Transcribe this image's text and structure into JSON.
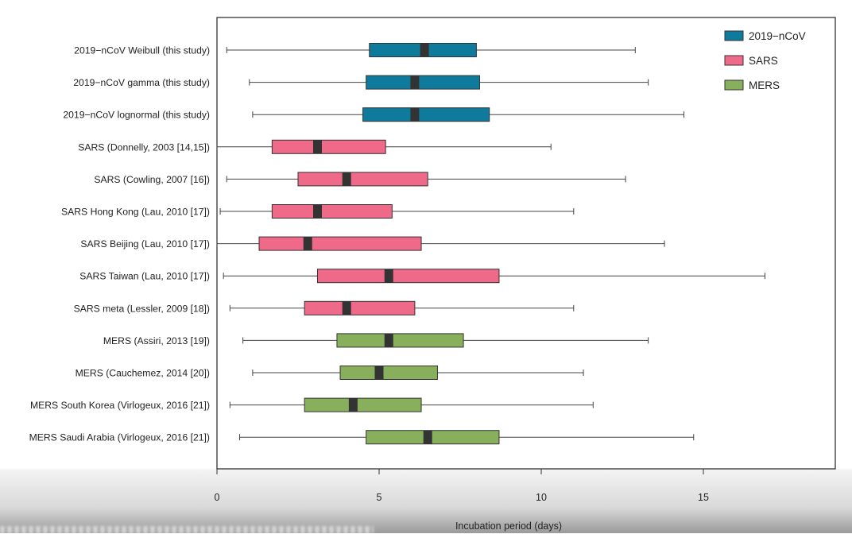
{
  "chart_data": {
    "type": "boxplot",
    "orientation": "horizontal",
    "title": "",
    "xlabel": "Incubation period (days)",
    "ylabel": "",
    "xlim": [
      0,
      19
    ],
    "x_ticks": [
      0,
      5,
      10,
      15
    ],
    "grid": false,
    "legend_position": "top-right",
    "series": [
      {
        "name": "2019−nCoV",
        "color": "#0f7b9c"
      },
      {
        "name": "SARS",
        "color": "#ef6a88"
      },
      {
        "name": "MERS",
        "color": "#88b05c"
      }
    ],
    "rows": [
      {
        "label": "2019−nCoV Weibull (this study)",
        "series": "2019−nCoV",
        "min": 0.3,
        "q1": 4.7,
        "median": 6.4,
        "q3": 8.0,
        "max": 12.9
      },
      {
        "label": "2019−nCoV gamma (this study)",
        "series": "2019−nCoV",
        "min": 1.0,
        "q1": 4.6,
        "median": 6.1,
        "q3": 8.1,
        "max": 13.3
      },
      {
        "label": "2019−nCoV lognormal (this study)",
        "series": "2019−nCoV",
        "min": 1.1,
        "q1": 4.5,
        "median": 6.1,
        "q3": 8.4,
        "max": 14.4
      },
      {
        "label": "SARS (Donnelly, 2003 [14,15])",
        "series": "SARS",
        "min": 0.0,
        "q1": 1.7,
        "median": 3.1,
        "q3": 5.2,
        "max": 10.3
      },
      {
        "label": "SARS (Cowling, 2007 [16])",
        "series": "SARS",
        "min": 0.3,
        "q1": 2.5,
        "median": 4.0,
        "q3": 6.5,
        "max": 12.6
      },
      {
        "label": "SARS Hong Kong (Lau, 2010 [17])",
        "series": "SARS",
        "min": 0.1,
        "q1": 1.7,
        "median": 3.1,
        "q3": 5.4,
        "max": 11.0
      },
      {
        "label": "SARS Beijing (Lau, 2010 [17])",
        "series": "SARS",
        "min": 0.0,
        "q1": 1.3,
        "median": 2.8,
        "q3": 6.3,
        "max": 13.8
      },
      {
        "label": "SARS Taiwan (Lau, 2010 [17])",
        "series": "SARS",
        "min": 0.2,
        "q1": 3.1,
        "median": 5.3,
        "q3": 8.7,
        "max": 16.9
      },
      {
        "label": "SARS meta (Lessler, 2009 [18])",
        "series": "SARS",
        "min": 0.4,
        "q1": 2.7,
        "median": 4.0,
        "q3": 6.1,
        "max": 11.0
      },
      {
        "label": "MERS (Assiri, 2013 [19])",
        "series": "MERS",
        "min": 0.8,
        "q1": 3.7,
        "median": 5.3,
        "q3": 7.6,
        "max": 13.3
      },
      {
        "label": "MERS (Cauchemez, 2014 [20])",
        "series": "MERS",
        "min": 1.1,
        "q1": 3.8,
        "median": 5.0,
        "q3": 6.8,
        "max": 11.3
      },
      {
        "label": "MERS South Korea (Virlogeux, 2016 [21])",
        "series": "MERS",
        "min": 0.4,
        "q1": 2.7,
        "median": 4.2,
        "q3": 6.3,
        "max": 11.6
      },
      {
        "label": "MERS Saudi Arabia (Virlogeux, 2016 [21])",
        "series": "MERS",
        "min": 0.7,
        "q1": 4.6,
        "median": 6.5,
        "q3": 8.7,
        "max": 14.7
      }
    ]
  }
}
